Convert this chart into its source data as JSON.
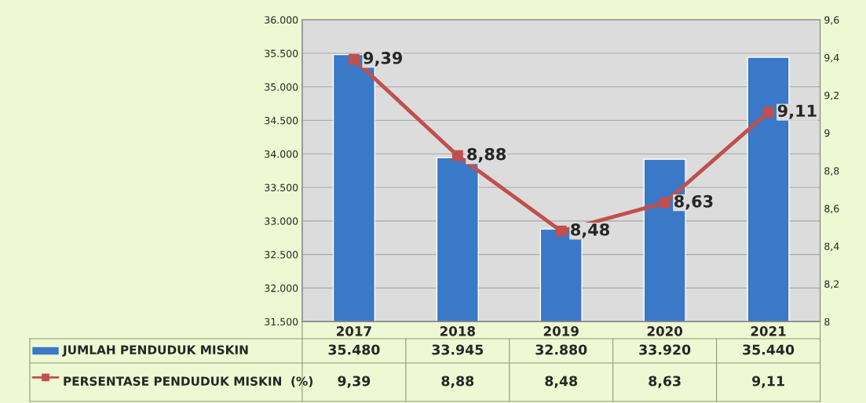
{
  "chart_data": {
    "type": "bar",
    "categories": [
      "2017",
      "2018",
      "2019",
      "2020",
      "2021"
    ],
    "series": [
      {
        "name": "JUMLAH PENDUDUK MISKIN",
        "color": "#3a78c8",
        "values": [
          35480,
          33945,
          32880,
          33920,
          35440
        ],
        "value_labels": [
          "35.480",
          "33.945",
          "32.880",
          "33.920",
          "35.440"
        ]
      },
      {
        "name": "PERSENTASE PENDUDUK MISKIN  (%)",
        "type": "line",
        "axis": "y2",
        "color": "#c0504d",
        "marker": "square",
        "line_style": "solid",
        "values": [
          9.39,
          8.88,
          8.48,
          8.63,
          9.11
        ],
        "value_labels": [
          "9,39",
          "8,88",
          "8,48",
          "8,63",
          "9,11"
        ]
      }
    ],
    "ylim": [
      31500,
      36000
    ],
    "yticks": [
      {
        "value": 31500,
        "label": "31.500"
      },
      {
        "value": 32000,
        "label": "32.000"
      },
      {
        "value": 32500,
        "label": "32.500"
      },
      {
        "value": 33000,
        "label": "33.000"
      },
      {
        "value": 33500,
        "label": "33.500"
      },
      {
        "value": 34000,
        "label": "34.000"
      },
      {
        "value": 34500,
        "label": "34.500"
      },
      {
        "value": 35000,
        "label": "35.000"
      },
      {
        "value": 35500,
        "label": "35.500"
      },
      {
        "value": 36000,
        "label": "36.000"
      }
    ],
    "y2lim": [
      8,
      9.6
    ],
    "y2ticks": [
      8,
      {
        "value": 8.2,
        "label": "8,2"
      },
      {
        "value": 8.4,
        "label": "8,4"
      },
      {
        "value": 8.6,
        "label": "8,6"
      },
      {
        "value": 8.8,
        "label": "8,8"
      },
      9,
      {
        "value": 9.2,
        "label": "9,2"
      },
      {
        "value": 9.4,
        "label": "9,4"
      },
      {
        "value": 9.6,
        "label": "9,6"
      }
    ],
    "grid": "y",
    "legend": "bottom",
    "data_labels": true
  }
}
